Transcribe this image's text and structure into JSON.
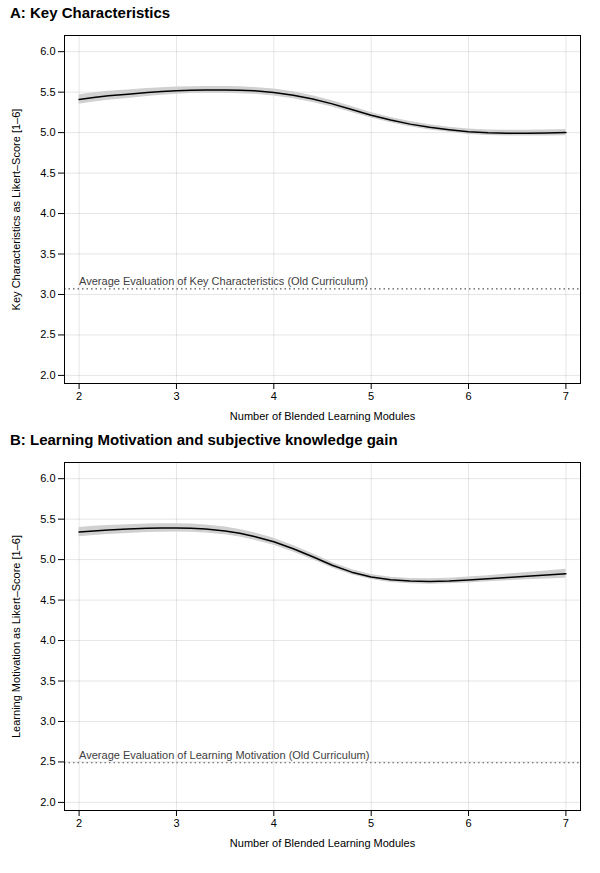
{
  "chart_data": [
    {
      "type": "line",
      "title": "A: Key Characteristics",
      "xlabel": "Number of Blended Learning Modules",
      "ylabel": "Key Characteristics as Likert–Score [1–6]",
      "x": [
        2.0,
        2.15,
        2.3,
        2.5,
        2.7,
        2.85,
        3.0,
        3.15,
        3.3,
        3.5,
        3.65,
        3.8,
        4.0,
        4.2,
        4.4,
        4.6,
        4.8,
        5.0,
        5.2,
        5.4,
        5.6,
        5.8,
        6.0,
        6.2,
        6.4,
        6.6,
        6.8,
        7.0
      ],
      "series": [
        {
          "type": "band",
          "color": "#d0d0d0",
          "upper": [
            5.468,
            5.492,
            5.51,
            5.528,
            5.545,
            5.555,
            5.563,
            5.568,
            5.571,
            5.571,
            5.567,
            5.558,
            5.538,
            5.505,
            5.457,
            5.394,
            5.322,
            5.25,
            5.188,
            5.137,
            5.097,
            5.067,
            5.044,
            5.032,
            5.028,
            5.028,
            5.033,
            5.038
          ],
          "lower": [
            5.352,
            5.378,
            5.4,
            5.422,
            5.445,
            5.461,
            5.473,
            5.482,
            5.485,
            5.485,
            5.481,
            5.474,
            5.452,
            5.419,
            5.373,
            5.316,
            5.248,
            5.18,
            5.122,
            5.073,
            5.033,
            5.003,
            4.976,
            4.964,
            4.958,
            4.958,
            4.959,
            4.962
          ]
        },
        {
          "type": "line",
          "color": "#000000",
          "values": [
            5.41,
            5.435,
            5.455,
            5.475,
            5.495,
            5.508,
            5.518,
            5.525,
            5.528,
            5.528,
            5.524,
            5.516,
            5.495,
            5.462,
            5.415,
            5.355,
            5.285,
            5.215,
            5.155,
            5.105,
            5.065,
            5.035,
            5.01,
            4.998,
            4.993,
            4.993,
            4.996,
            5.0
          ]
        }
      ],
      "hlines": [
        {
          "y": 3.07,
          "label": "Average Evaluation of Key Characteristics (Old Curriculum)",
          "color": "#555555",
          "line_style": "dotted"
        }
      ],
      "xlim": [
        1.85,
        7.15
      ],
      "ylim": [
        1.9,
        6.2
      ],
      "xticks": [
        2,
        3,
        4,
        5,
        6,
        7
      ],
      "yticks": [
        {
          "value": 2.0,
          "label": "2.0"
        },
        2.5,
        {
          "value": 3.0,
          "label": "3.0"
        },
        3.5,
        {
          "value": 4.0,
          "label": "4.0"
        },
        4.5,
        {
          "value": 5.0,
          "label": "5.0"
        },
        5.5,
        {
          "value": 6.0,
          "label": "6.0"
        }
      ],
      "grid": true
    },
    {
      "type": "line",
      "title": "B: Learning Motivation and subjective knowledge gain",
      "xlabel": "Number of Blended Learning Modules",
      "ylabel": "Learning Motivation as Likert–Score [1–6]",
      "x": [
        2.0,
        2.15,
        2.3,
        2.5,
        2.7,
        2.85,
        3.0,
        3.15,
        3.3,
        3.5,
        3.65,
        3.8,
        4.0,
        4.2,
        4.4,
        4.6,
        4.8,
        5.0,
        5.2,
        5.4,
        5.6,
        5.8,
        6.0,
        6.2,
        6.4,
        6.6,
        6.8,
        7.0
      ],
      "series": [
        {
          "type": "band",
          "color": "#d0d0d0",
          "upper": [
            5.398,
            5.411,
            5.421,
            5.432,
            5.44,
            5.443,
            5.443,
            5.439,
            5.428,
            5.404,
            5.372,
            5.331,
            5.263,
            5.175,
            5.072,
            4.964,
            4.878,
            4.817,
            4.782,
            4.767,
            4.763,
            4.769,
            4.784,
            4.802,
            4.821,
            4.84,
            4.86,
            4.88
          ],
          "lower": [
            5.282,
            5.299,
            5.309,
            5.324,
            5.334,
            5.339,
            5.341,
            5.337,
            5.328,
            5.306,
            5.278,
            5.239,
            5.177,
            5.095,
            4.998,
            4.896,
            4.812,
            4.753,
            4.718,
            4.703,
            4.697,
            4.701,
            4.712,
            4.726,
            4.739,
            4.75,
            4.76,
            4.77
          ]
        },
        {
          "type": "line",
          "color": "#000000",
          "values": [
            5.34,
            5.355,
            5.365,
            5.378,
            5.387,
            5.391,
            5.392,
            5.388,
            5.378,
            5.355,
            5.325,
            5.285,
            5.22,
            5.135,
            5.035,
            4.93,
            4.845,
            4.785,
            4.75,
            4.735,
            4.73,
            4.735,
            4.748,
            4.764,
            4.78,
            4.795,
            4.81,
            4.825
          ]
        }
      ],
      "hlines": [
        {
          "y": 2.49,
          "label": "Average Evaluation of Learning Motivation (Old Curriculum)",
          "color": "#555555",
          "line_style": "dotted"
        }
      ],
      "xlim": [
        1.85,
        7.15
      ],
      "ylim": [
        1.9,
        6.2
      ],
      "xticks": [
        2,
        3,
        4,
        5,
        6,
        7
      ],
      "yticks": [
        {
          "value": 2.0,
          "label": "2.0"
        },
        2.5,
        {
          "value": 3.0,
          "label": "3.0"
        },
        3.5,
        {
          "value": 4.0,
          "label": "4.0"
        },
        4.5,
        {
          "value": 5.0,
          "label": "5.0"
        },
        5.5,
        {
          "value": 6.0,
          "label": "6.0"
        }
      ],
      "grid": true
    }
  ]
}
